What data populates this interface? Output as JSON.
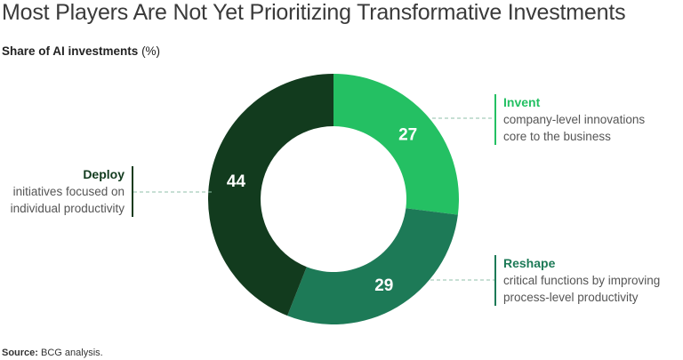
{
  "title": "Most Players Are Not Yet Prioritizing Transformative Investments",
  "subtitle": "Share of AI investments",
  "subtitle_unit": "(%)",
  "source_label": "Source:",
  "source_text": "BCG analysis.",
  "colors": {
    "invent": "#24c063",
    "reshape": "#1d7a57",
    "deploy": "#123b1e",
    "label_text": "#ffffff",
    "leader": "#8fbfa8"
  },
  "chart_data": {
    "type": "pie",
    "variant": "donut",
    "title": "Most Players Are Not Yet Prioritizing Transformative Investments",
    "subtitle": "Share of AI investments (%)",
    "slices": [
      {
        "label": "Invent",
        "value": 27,
        "description": "company-level innovations core to the business",
        "color": "#24c063"
      },
      {
        "label": "Reshape",
        "value": 29,
        "description": "critical functions by improving process-level productivity",
        "color": "#1d7a57"
      },
      {
        "label": "Deploy",
        "value": 44,
        "description": "initiatives focused on individual productivity",
        "color": "#123b1e"
      }
    ]
  },
  "callouts": {
    "invent": {
      "name": "Invent",
      "line1": "company-level innovations",
      "line2": "core to the business"
    },
    "reshape": {
      "name": "Reshape",
      "line1": "critical functions by improving",
      "line2": "process-level productivity"
    },
    "deploy": {
      "name": "Deploy",
      "line1": "initiatives focused on",
      "line2": "individual productivity"
    }
  }
}
